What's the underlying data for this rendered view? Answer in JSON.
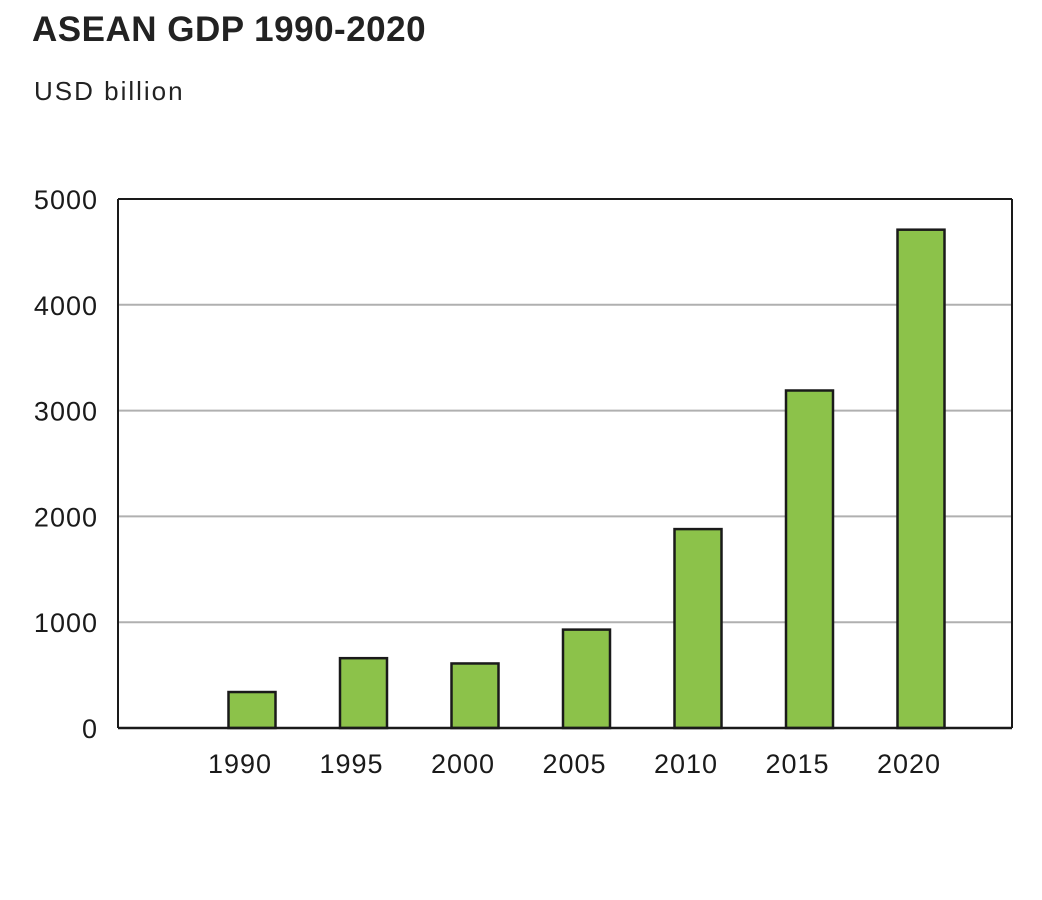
{
  "chart_data": {
    "type": "bar",
    "title": "ASEAN GDP 1990-2020",
    "subtitle": "USD billion",
    "xlabel": "",
    "ylabel": "USD billion",
    "categories": [
      "1990",
      "1995",
      "2000",
      "2005",
      "2010",
      "2015",
      "2020"
    ],
    "values": [
      340,
      660,
      610,
      930,
      1880,
      3190,
      4710
    ],
    "ylim": [
      0,
      5000
    ],
    "yticks": [
      0,
      1000,
      2000,
      3000,
      4000,
      5000
    ],
    "grid": true,
    "legend": "none",
    "colors": {
      "bar": "#8cc24a",
      "bar_outline": "#1a1a1a",
      "grid": "#b0b0b0",
      "axis": "#1a1a1a"
    }
  }
}
